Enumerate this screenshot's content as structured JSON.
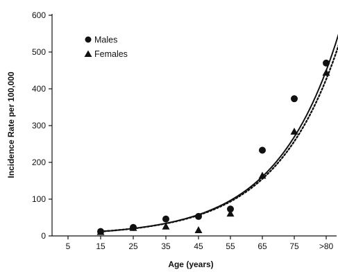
{
  "chart_data": {
    "type": "scatter",
    "xlabel": "Age (years)",
    "ylabel": "Incidence Rate per 100,000",
    "categories": [
      "5",
      "15",
      "25",
      "35",
      "45",
      "55",
      "65",
      "75",
      ">80"
    ],
    "ylim": [
      0,
      600
    ],
    "yticks": [
      0,
      100,
      200,
      300,
      400,
      500,
      600
    ],
    "grid": false,
    "legend_position": "top-left",
    "series": [
      {
        "name": "Males",
        "marker": "circle",
        "fit_line": "solid",
        "x": [
          "15",
          "25",
          "35",
          "45",
          "55",
          "65",
          "75",
          ">80"
        ],
        "values": [
          12,
          23,
          46,
          53,
          73,
          233,
          373,
          470
        ]
      },
      {
        "name": "Females",
        "marker": "triangle",
        "fit_line": "dotted",
        "x": [
          "15",
          "25",
          "35",
          "45",
          "55",
          "65",
          "75",
          ">80"
        ],
        "values": [
          12,
          23,
          27,
          17,
          62,
          165,
          285,
          445
        ]
      }
    ],
    "colors": {
      "ink": "#111111",
      "background": "#ffffff"
    }
  }
}
